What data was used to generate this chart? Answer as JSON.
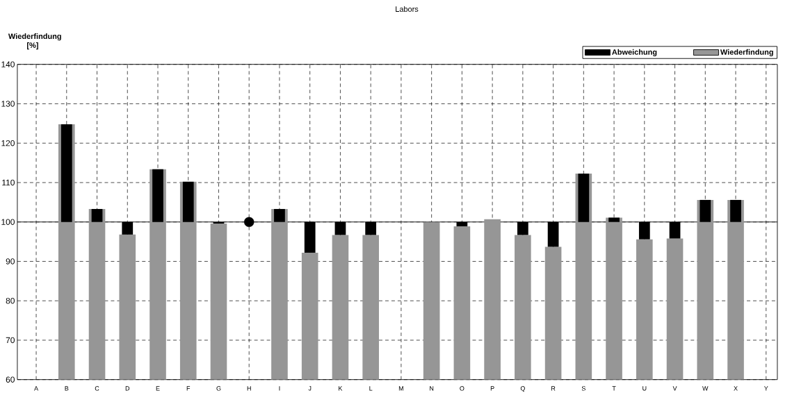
{
  "chart_data": {
    "type": "bar",
    "title": "Labors",
    "ylabel": "Wiederfindung [%]",
    "categories": [
      "A",
      "B",
      "C",
      "D",
      "E",
      "F",
      "G",
      "H",
      "I",
      "J",
      "K",
      "L",
      "M",
      "N",
      "O",
      "P",
      "Q",
      "R",
      "S",
      "T",
      "U",
      "V",
      "W",
      "X",
      "Y"
    ],
    "series": [
      {
        "name": "Abweichung",
        "color": "#000000",
        "values": [
          null,
          24.8,
          3.3,
          -3.2,
          13.4,
          10.2,
          -0.4,
          null,
          3.3,
          -7.8,
          -3.3,
          -3.3,
          null,
          null,
          -1.1,
          null,
          -3.3,
          -6.3,
          12.3,
          1.1,
          -4.4,
          -4.2,
          5.6,
          5.6,
          null
        ],
        "base": [
          null,
          100,
          100,
          100,
          100,
          100,
          100,
          null,
          100,
          100,
          100,
          100,
          null,
          null,
          100,
          null,
          100,
          100,
          100,
          100,
          100,
          100,
          100,
          100,
          null
        ]
      },
      {
        "name": "Wiederfindung",
        "color": "#969696",
        "values": [
          null,
          124.8,
          103.3,
          96.8,
          113.4,
          110.2,
          99.6,
          null,
          103.3,
          92.2,
          96.7,
          96.7,
          null,
          100.0,
          98.9,
          100.7,
          96.7,
          93.7,
          112.3,
          101.1,
          95.6,
          95.8,
          105.6,
          105.6,
          null
        ]
      },
      {
        "type": "scatter",
        "color": "#000000",
        "marker": "circle",
        "values": [
          null,
          null,
          null,
          null,
          null,
          null,
          null,
          100,
          null,
          null,
          null,
          null,
          null,
          null,
          null,
          null,
          null,
          null,
          null,
          null,
          null,
          null,
          null,
          null,
          null
        ]
      }
    ],
    "ylim": [
      60,
      140
    ],
    "yticks": [
      60,
      70,
      80,
      90,
      100,
      110,
      120,
      130,
      140
    ],
    "ref_lines": [
      {
        "axis": "y",
        "value": 100
      }
    ],
    "grid": true,
    "legend": "top right"
  }
}
